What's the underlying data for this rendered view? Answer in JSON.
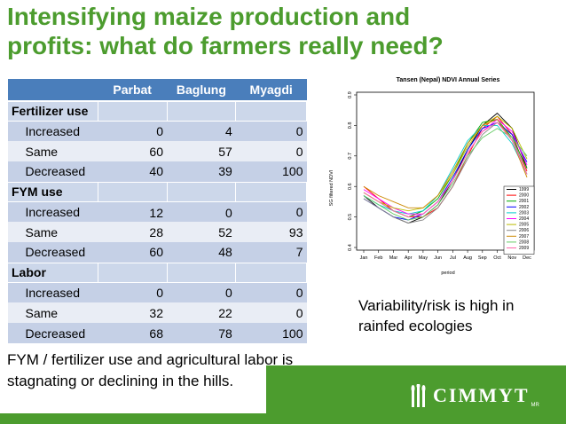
{
  "title": {
    "line1": "Intensifying maize production and",
    "line2": "profits:  what do farmers really need?"
  },
  "table": {
    "columns": [
      "",
      "Parbat",
      "Baglung",
      "Myagdi"
    ],
    "sections": [
      {
        "label": "Fertilizer use",
        "rows": [
          {
            "label": "Increased",
            "values": [
              "0",
              "4",
              "0"
            ]
          },
          {
            "label": "Same",
            "values": [
              "60",
              "57",
              "0"
            ]
          },
          {
            "label": "Decreased",
            "values": [
              "40",
              "39",
              "100"
            ]
          }
        ]
      },
      {
        "label": "FYM use",
        "rows": [
          {
            "label": "Increased",
            "values": [
              "12",
              "0",
              "0"
            ]
          },
          {
            "label": "Same",
            "values": [
              "28",
              "52",
              "93"
            ]
          },
          {
            "label": "Decreased",
            "values": [
              "60",
              "48",
              "7"
            ]
          }
        ]
      },
      {
        "label": "Labor",
        "rows": [
          {
            "label": "Increased",
            "values": [
              "0",
              "0",
              "0"
            ]
          },
          {
            "label": "Same",
            "values": [
              "32",
              "22",
              "0"
            ]
          },
          {
            "label": "Decreased",
            "values": [
              "68",
              "78",
              "100"
            ]
          }
        ]
      }
    ]
  },
  "chart_data": {
    "type": "line",
    "title": "Tansen (Nepal) NDVI Annual Series",
    "xlabel": "period",
    "ylabel": "SG filtered NDVI",
    "ylim": [
      0.4,
      0.9
    ],
    "yticks": [
      "0.4",
      "0.5",
      "0.6",
      "0.7",
      "0.8",
      "0.9"
    ],
    "x": [
      "Jan",
      "Feb",
      "Mar",
      "Apr",
      "May",
      "Jun",
      "Jul",
      "Aug",
      "Sep",
      "Oct",
      "Nov",
      "Dec"
    ],
    "series": [
      {
        "name": "1999",
        "color": "#000000",
        "values": [
          0.57,
          0.53,
          0.5,
          0.48,
          0.5,
          0.54,
          0.62,
          0.72,
          0.8,
          0.84,
          0.79,
          0.66
        ]
      },
      {
        "name": "2000",
        "color": "#ff0000",
        "values": [
          0.6,
          0.56,
          0.52,
          0.5,
          0.5,
          0.53,
          0.6,
          0.7,
          0.79,
          0.83,
          0.77,
          0.65
        ]
      },
      {
        "name": "2001",
        "color": "#00aa00",
        "values": [
          0.58,
          0.55,
          0.52,
          0.5,
          0.52,
          0.56,
          0.64,
          0.74,
          0.81,
          0.82,
          0.76,
          0.66
        ]
      },
      {
        "name": "2002",
        "color": "#0000ff",
        "values": [
          0.56,
          0.53,
          0.5,
          0.49,
          0.51,
          0.55,
          0.63,
          0.72,
          0.79,
          0.81,
          0.77,
          0.68
        ]
      },
      {
        "name": "2003",
        "color": "#00cccc",
        "values": [
          0.57,
          0.54,
          0.52,
          0.51,
          0.52,
          0.57,
          0.66,
          0.75,
          0.8,
          0.8,
          0.74,
          0.64
        ]
      },
      {
        "name": "2004",
        "color": "#ff00ff",
        "values": [
          0.59,
          0.56,
          0.53,
          0.51,
          0.51,
          0.55,
          0.62,
          0.71,
          0.78,
          0.82,
          0.78,
          0.67
        ]
      },
      {
        "name": "2005",
        "color": "#bbbb00",
        "values": [
          0.58,
          0.55,
          0.53,
          0.52,
          0.53,
          0.57,
          0.64,
          0.73,
          0.8,
          0.83,
          0.79,
          0.69
        ]
      },
      {
        "name": "2006",
        "color": "#888888",
        "values": [
          0.56,
          0.53,
          0.5,
          0.48,
          0.49,
          0.53,
          0.6,
          0.69,
          0.77,
          0.81,
          0.76,
          0.64
        ]
      },
      {
        "name": "2007",
        "color": "#cc8800",
        "values": [
          0.6,
          0.57,
          0.55,
          0.53,
          0.53,
          0.57,
          0.65,
          0.74,
          0.8,
          0.82,
          0.75,
          0.63
        ]
      },
      {
        "name": "2008",
        "color": "#66cc66",
        "values": [
          0.57,
          0.54,
          0.51,
          0.49,
          0.5,
          0.54,
          0.61,
          0.7,
          0.76,
          0.79,
          0.76,
          0.7
        ]
      },
      {
        "name": "2009",
        "color": "#ff66aa",
        "values": [
          0.58,
          0.55,
          0.52,
          0.5,
          0.51,
          0.55,
          0.62,
          0.71,
          0.78,
          0.81,
          0.75,
          0.64
        ]
      }
    ]
  },
  "notes": {
    "right": "Variability/risk is high in rainfed ecologies",
    "bottom": "FYM / fertilizer use and agricultural labor is stagnating or declining in the hills."
  },
  "logo": {
    "text": "CIMMYT",
    "tm": "MR"
  },
  "colors": {
    "brand_green": "#4c9c2e",
    "table_header": "#4a7ebb"
  }
}
